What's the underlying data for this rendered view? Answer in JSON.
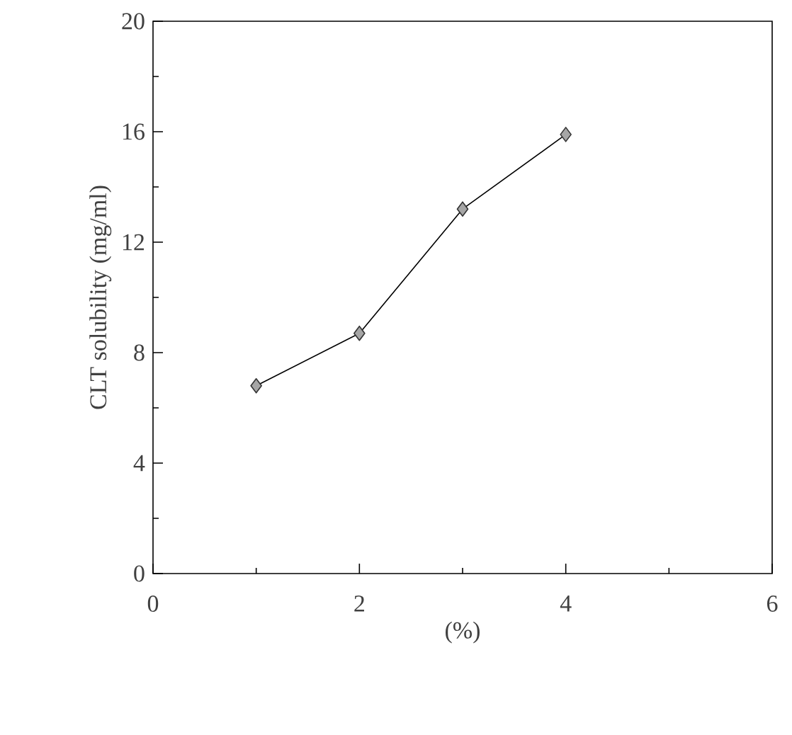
{
  "chart_data": {
    "type": "line",
    "xlabel": "(%)",
    "ylabel": "CLT solubility (mg/ml)",
    "x": [
      1,
      2,
      3,
      4
    ],
    "values": [
      6.8,
      8.7,
      13.2,
      15.9
    ],
    "color": "#000000",
    "marker": "diamond",
    "line_style": "solid",
    "xlim": [
      0,
      6
    ],
    "ylim": [
      0,
      20
    ],
    "xticks": [
      0,
      2,
      4,
      6
    ],
    "yticks": [
      0,
      4,
      8,
      12,
      16,
      20
    ],
    "grid": false
  }
}
